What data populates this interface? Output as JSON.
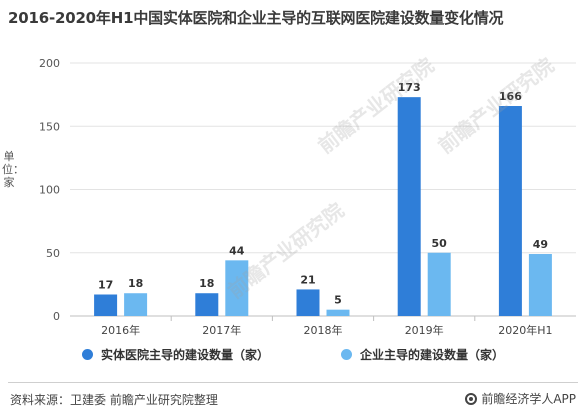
{
  "title": "2016-2020年H1中国实体医院和企业主导的互联网医院建设数量变化情况",
  "y_axis_label": "单位：家",
  "source": "资料来源：卫建委 前瞻产业研究院整理",
  "brand": "前瞻经济学人APP",
  "watermark": "前瞻产业研究院",
  "colors": {
    "series1": "#2f7ed8",
    "series2": "#6bb8f0"
  },
  "chart_data": {
    "type": "bar",
    "title": "2016-2020年H1中国实体医院和企业主导的互联网医院建设数量变化情况",
    "xlabel": "",
    "ylabel": "单位：家",
    "categories": [
      "2016年",
      "2017年",
      "2018年",
      "2019年",
      "2020年H1"
    ],
    "series": [
      {
        "name": "实体医院主导的建设数量（家）",
        "values": [
          17,
          18,
          21,
          173,
          166
        ]
      },
      {
        "name": "企业主导的建设数量（家）",
        "values": [
          18,
          44,
          5,
          50,
          49
        ]
      }
    ],
    "ylim": [
      0,
      200
    ],
    "yticks": [
      0,
      50,
      100,
      150,
      200
    ],
    "grid": true,
    "legend": "bottom"
  }
}
